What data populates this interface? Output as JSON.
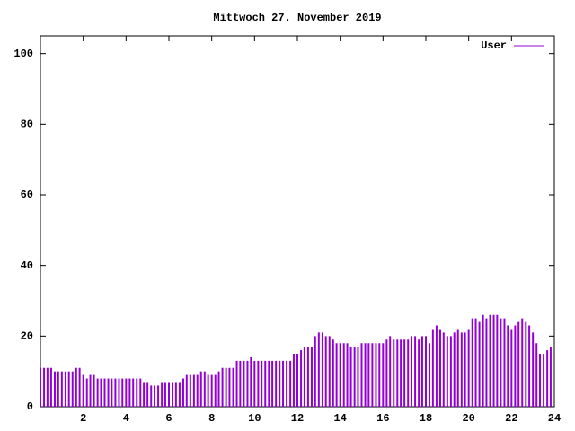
{
  "chart_data": {
    "type": "impulse",
    "title": "Mittwoch 27. November 2019",
    "x": [
      0,
      0.17,
      0.33,
      0.5,
      0.67,
      0.83,
      1,
      1.17,
      1.33,
      1.5,
      1.67,
      1.83,
      2,
      2.17,
      2.33,
      2.5,
      2.67,
      2.83,
      3,
      3.17,
      3.33,
      3.5,
      3.67,
      3.83,
      4,
      4.17,
      4.33,
      4.5,
      4.67,
      4.83,
      5,
      5.17,
      5.33,
      5.5,
      5.67,
      5.83,
      6,
      6.17,
      6.33,
      6.5,
      6.67,
      6.83,
      7,
      7.17,
      7.33,
      7.5,
      7.67,
      7.83,
      8,
      8.17,
      8.33,
      8.5,
      8.67,
      8.83,
      9,
      9.17,
      9.33,
      9.5,
      9.67,
      9.83,
      10,
      10.17,
      10.33,
      10.5,
      10.67,
      10.83,
      11,
      11.17,
      11.33,
      11.5,
      11.67,
      11.83,
      12,
      12.17,
      12.33,
      12.5,
      12.67,
      12.83,
      13,
      13.17,
      13.33,
      13.5,
      13.67,
      13.83,
      14,
      14.17,
      14.33,
      14.5,
      14.67,
      14.83,
      15,
      15.17,
      15.33,
      15.5,
      15.67,
      15.83,
      16,
      16.17,
      16.33,
      16.5,
      16.67,
      16.83,
      17,
      17.17,
      17.33,
      17.5,
      17.67,
      17.83,
      18,
      18.17,
      18.33,
      18.5,
      18.67,
      18.83,
      19,
      19.17,
      19.33,
      19.5,
      19.67,
      19.83,
      20,
      20.17,
      20.33,
      20.5,
      20.67,
      20.83,
      21,
      21.17,
      21.33,
      21.5,
      21.67,
      21.83,
      22,
      22.17,
      22.33,
      22.5,
      22.67,
      22.83,
      23,
      23.17,
      23.33,
      23.5,
      23.67,
      23.83
    ],
    "series": [
      {
        "name": "User",
        "color": "#9400d3",
        "values": [
          11,
          11,
          11,
          11,
          10,
          10,
          10,
          10,
          10,
          10,
          11,
          11,
          9,
          8,
          9,
          9,
          8,
          8,
          8,
          8,
          8,
          8,
          8,
          8,
          8,
          8,
          8,
          8,
          8,
          7,
          7,
          6,
          6,
          6,
          7,
          7,
          7,
          7,
          7,
          7,
          8,
          9,
          9,
          9,
          9,
          10,
          10,
          9,
          9,
          9,
          10,
          11,
          11,
          11,
          11,
          13,
          13,
          13,
          13,
          14,
          13,
          13,
          13,
          13,
          13,
          13,
          13,
          13,
          13,
          13,
          13,
          15,
          15,
          16,
          17,
          17,
          17,
          20,
          21,
          21,
          20,
          20,
          19,
          18,
          18,
          18,
          18,
          17,
          17,
          17,
          18,
          18,
          18,
          18,
          18,
          18,
          18,
          19,
          20,
          19,
          19,
          19,
          19,
          19,
          20,
          20,
          19,
          20,
          20,
          18,
          22,
          23,
          22,
          21,
          20,
          20,
          21,
          22,
          21,
          21,
          22,
          25,
          25,
          24,
          26,
          25,
          26,
          26,
          26,
          25,
          25,
          23,
          22,
          23,
          24,
          25,
          24,
          23,
          21,
          18,
          15,
          15,
          16,
          17
        ]
      }
    ],
    "xlim": [
      0,
      24
    ],
    "xticks": [
      2,
      4,
      6,
      8,
      10,
      12,
      14,
      16,
      18,
      20,
      22,
      24
    ],
    "ylim": [
      0,
      105
    ],
    "yticks": [
      0,
      20,
      40,
      60,
      80,
      100
    ],
    "legend": "top-right"
  }
}
